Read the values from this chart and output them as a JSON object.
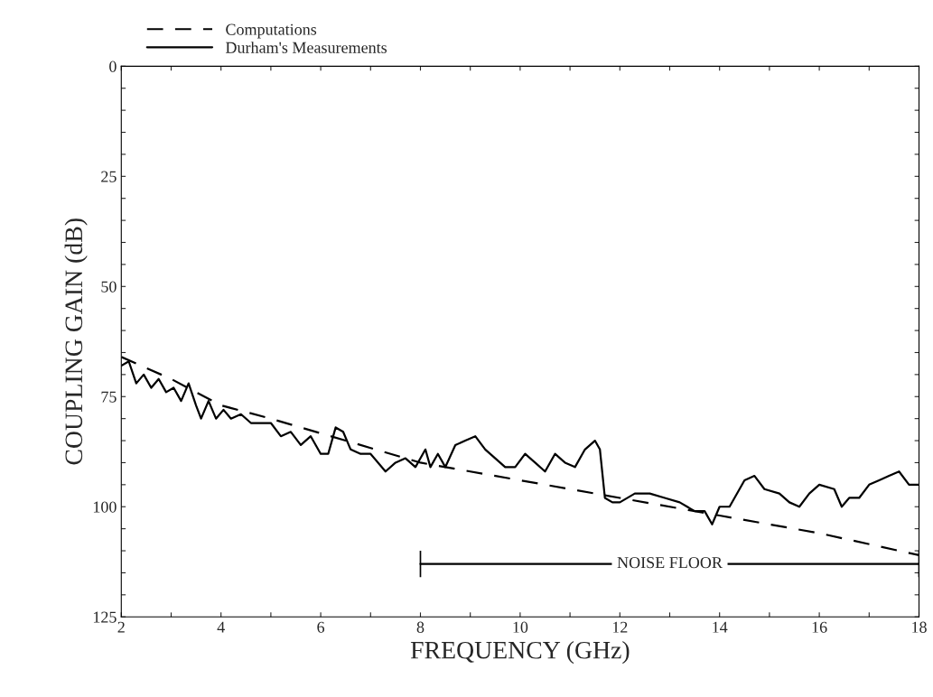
{
  "chart_data": {
    "type": "line",
    "xlabel": "FREQUENCY (GHz)",
    "ylabel": "COUPLING GAIN (dB)",
    "xlim": [
      2,
      18
    ],
    "ylim": [
      125,
      0
    ],
    "xticks": [
      2,
      {
        "value": 3,
        "label": null
      },
      4,
      {
        "value": 5,
        "label": null
      },
      6,
      {
        "value": 7,
        "label": null
      },
      8,
      {
        "value": 9,
        "label": null
      },
      10,
      {
        "value": 11,
        "label": null
      },
      12,
      {
        "value": 13,
        "label": null
      },
      14,
      {
        "value": 15,
        "label": null
      },
      16,
      {
        "value": 17,
        "label": null
      },
      18
    ],
    "yticks": [
      0,
      {
        "value": 5,
        "label": null
      },
      {
        "value": 10,
        "label": null
      },
      {
        "value": 15,
        "label": null
      },
      {
        "value": 20,
        "label": null
      },
      25,
      {
        "value": 30,
        "label": null
      },
      {
        "value": 35,
        "label": null
      },
      {
        "value": 40,
        "label": null
      },
      {
        "value": 45,
        "label": null
      },
      50,
      {
        "value": 55,
        "label": null
      },
      {
        "value": 60,
        "label": null
      },
      {
        "value": 65,
        "label": null
      },
      {
        "value": 70,
        "label": null
      },
      75,
      {
        "value": 80,
        "label": null
      },
      {
        "value": 85,
        "label": null
      },
      {
        "value": 90,
        "label": null
      },
      {
        "value": 95,
        "label": null
      },
      100,
      {
        "value": 105,
        "label": null
      },
      {
        "value": 110,
        "label": null
      },
      {
        "value": 115,
        "label": null
      },
      {
        "value": 120,
        "label": null
      },
      125
    ],
    "grid": false,
    "legend": "top left",
    "series": [
      {
        "name": "Computations",
        "color": "#000000",
        "line_style": "dashed",
        "x": [
          2,
          3,
          3.5,
          4,
          5,
          6.5,
          8,
          10,
          12,
          14,
          16,
          18
        ],
        "values": [
          66,
          71,
          74,
          77,
          80,
          85,
          90,
          94,
          98,
          102,
          106,
          111
        ]
      },
      {
        "color": "#000000",
        "line_style": "solid",
        "x": [
          8,
          18
        ],
        "values": [
          113,
          113
        ],
        "errors": [
          3,
          3
        ]
      },
      {
        "name": "Durham's Measurements",
        "color": "#000000",
        "line_style": "solid",
        "x": [
          2,
          2.15,
          2.3,
          2.45,
          2.6,
          2.75,
          2.9,
          3.05,
          3.2,
          3.35,
          3.5,
          3.6,
          3.75,
          3.9,
          4.05,
          4.2,
          4.4,
          4.6,
          4.8,
          5.0,
          5.2,
          5.4,
          5.6,
          5.8,
          6.0,
          6.15,
          6.3,
          6.45,
          6.6,
          6.8,
          7.0,
          7.3,
          7.5,
          7.7,
          7.9,
          8.1,
          8.2,
          8.35,
          8.5,
          8.7,
          8.9,
          9.1,
          9.3,
          9.5,
          9.7,
          9.9,
          10.1,
          10.3,
          10.5,
          10.7,
          10.9,
          11.1,
          11.3,
          11.5,
          11.6,
          11.7,
          11.85,
          12.0,
          12.3,
          12.6,
          12.9,
          13.2,
          13.5,
          13.7,
          13.85,
          14.0,
          14.2,
          14.5,
          14.7,
          14.9,
          15.2,
          15.4,
          15.6,
          15.8,
          16.0,
          16.3,
          16.45,
          16.6,
          16.8,
          17.0,
          17.2,
          17.4,
          17.6,
          17.8,
          18.0
        ],
        "values": [
          68,
          67,
          72,
          70,
          73,
          71,
          74,
          73,
          76,
          72,
          77,
          80,
          76,
          80,
          78,
          80,
          79,
          81,
          81,
          81,
          84,
          83,
          86,
          84,
          88,
          88,
          82,
          83,
          87,
          88,
          88,
          92,
          90,
          89,
          91,
          87,
          91,
          88,
          91,
          86,
          85,
          84,
          87,
          89,
          91,
          91,
          88,
          90,
          92,
          88,
          90,
          91,
          87,
          85,
          87,
          98,
          99,
          99,
          97,
          97,
          98,
          99,
          101,
          101,
          104,
          100,
          100,
          94,
          93,
          96,
          97,
          99,
          100,
          97,
          95,
          96,
          100,
          98,
          98,
          95,
          94,
          93,
          92,
          95,
          95
        ]
      }
    ],
    "annotations": [
      {
        "text": "NOISE FLOOR",
        "x": 13,
        "y": 113
      }
    ]
  }
}
